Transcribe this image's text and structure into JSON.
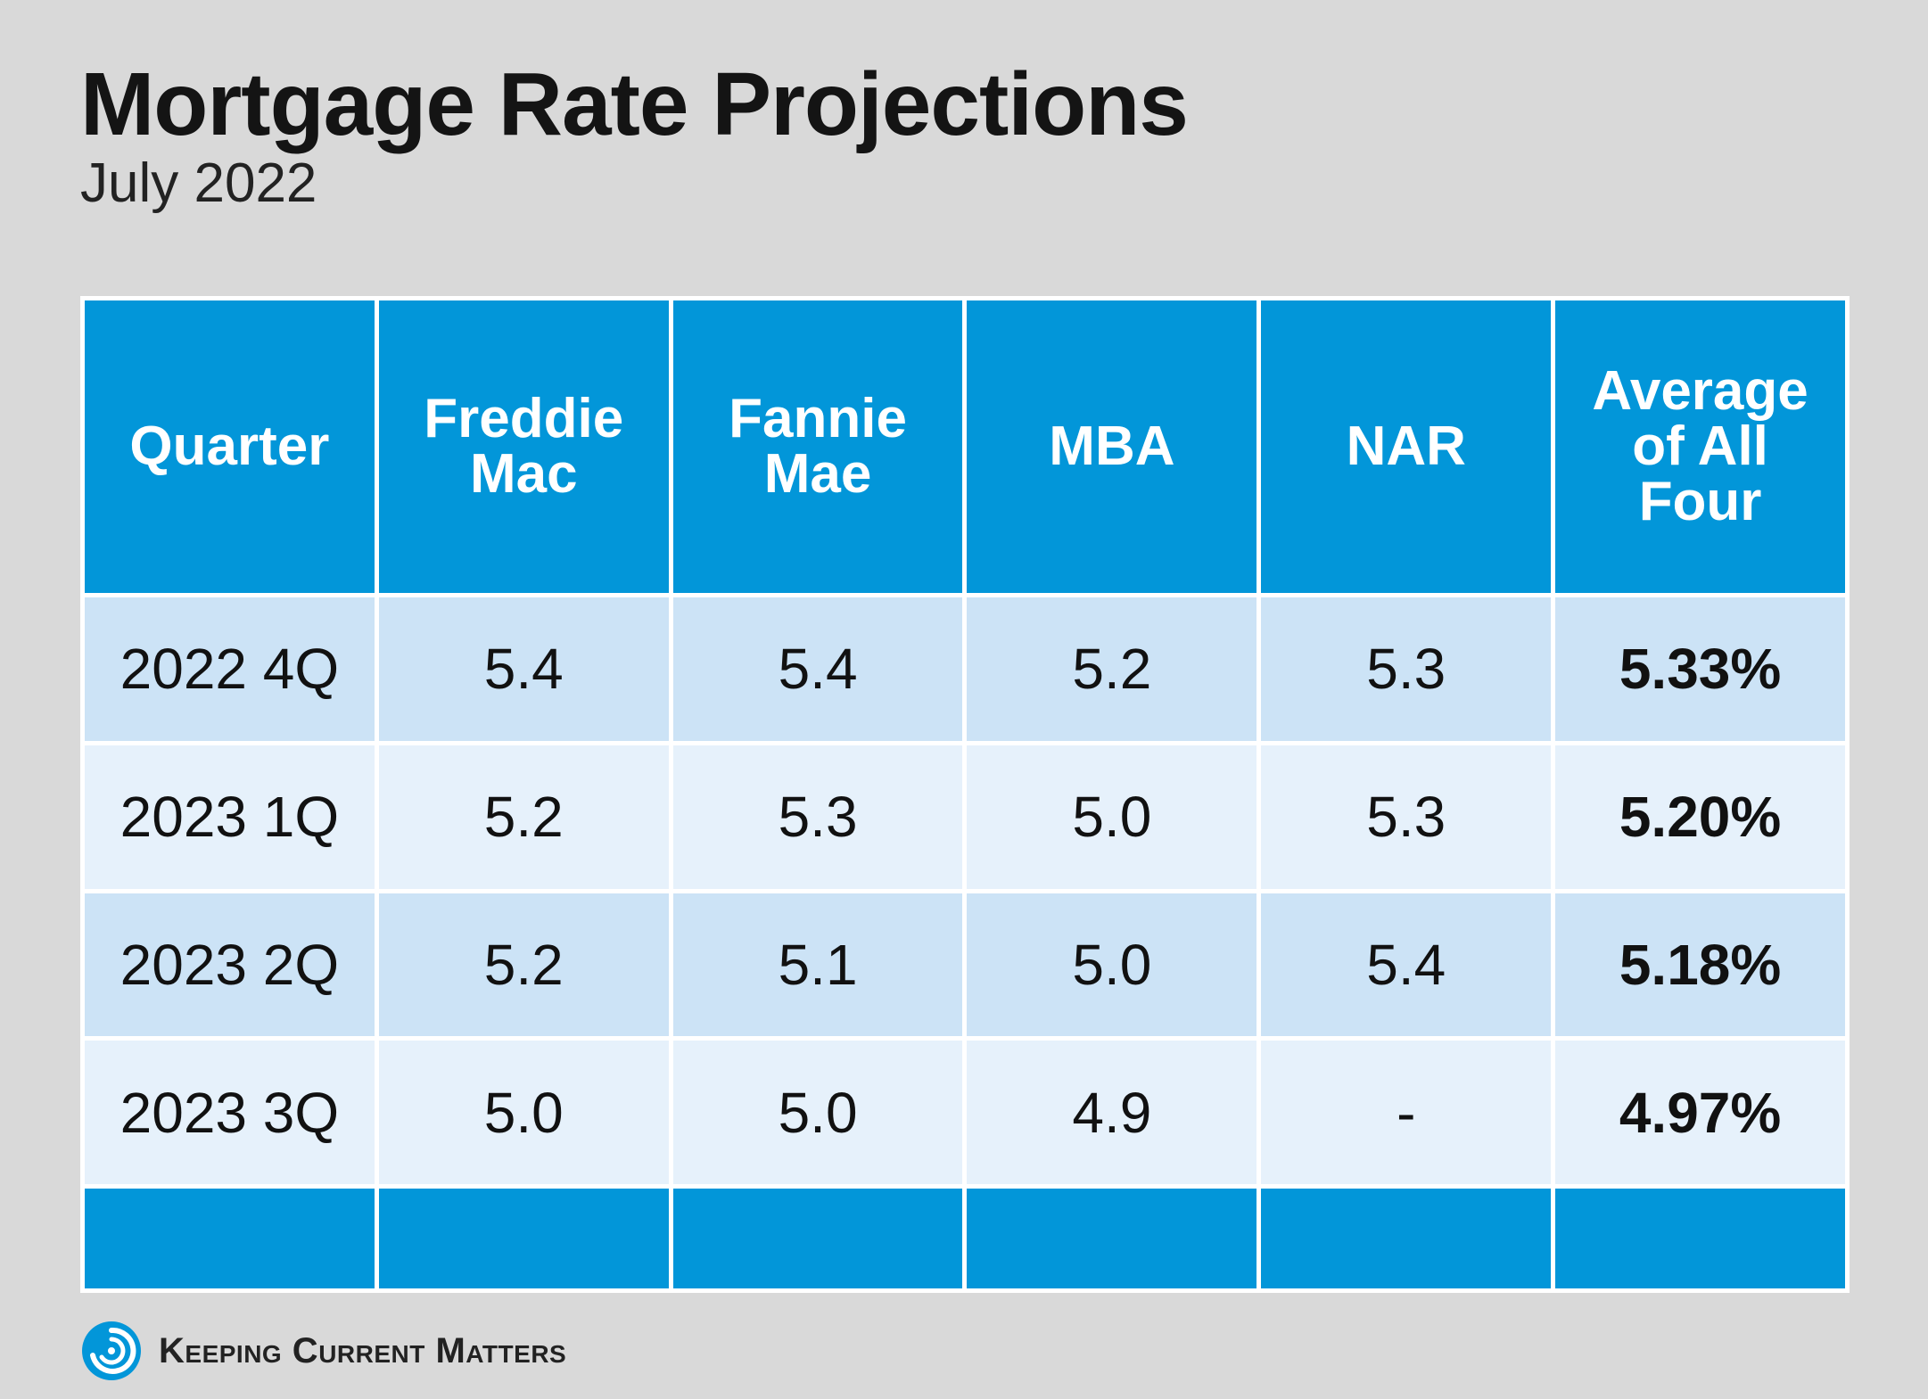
{
  "header": {
    "title": "Mortgage Rate Projections",
    "subtitle": "July 2022"
  },
  "chart_data": {
    "type": "table",
    "columns": [
      "Quarter",
      "Freddie Mac",
      "Fannie Mae",
      "MBA",
      "NAR",
      "Average of All Four"
    ],
    "rows": [
      {
        "quarter": "2022 4Q",
        "freddie_mac": "5.4",
        "fannie_mae": "5.4",
        "mba": "5.2",
        "nar": "5.3",
        "average": "5.33%"
      },
      {
        "quarter": "2023 1Q",
        "freddie_mac": "5.2",
        "fannie_mae": "5.3",
        "mba": "5.0",
        "nar": "5.3",
        "average": "5.20%"
      },
      {
        "quarter": "2023 2Q",
        "freddie_mac": "5.2",
        "fannie_mae": "5.1",
        "mba": "5.0",
        "nar": "5.4",
        "average": "5.18%"
      },
      {
        "quarter": "2023 3Q",
        "freddie_mac": "5.0",
        "fannie_mae": "5.0",
        "mba": "4.9",
        "nar": "-",
        "average": "4.97%"
      }
    ]
  },
  "brand": {
    "name": "Keeping Current Matters",
    "logo_icon": "swirl-logo-icon"
  },
  "colors": {
    "header_blue": "#0296d9",
    "row_band_dark": "#cce3f6",
    "row_band_light": "#e6f1fb",
    "background": "#d9d9d9"
  }
}
